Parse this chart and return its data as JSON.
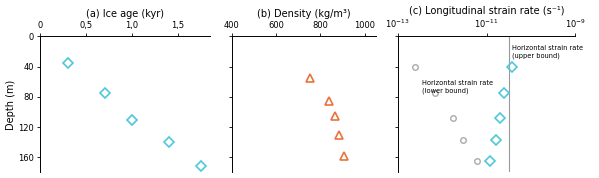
{
  "panel_a": {
    "title": "(a) Ice age (kyr)",
    "depths": [
      35,
      75,
      110,
      140,
      172
    ],
    "ages": [
      0.3,
      0.7,
      1.0,
      1.4,
      1.75
    ],
    "xlim": [
      0,
      1.85
    ],
    "xticks": [
      0,
      0.5,
      1.0,
      1.5
    ],
    "xticklabels": [
      "0",
      "0,5",
      "1,0",
      "1,5"
    ],
    "color": "#4DC8DC",
    "markersize": 5
  },
  "panel_b": {
    "title": "(b) Density (kg/m³)",
    "depths": [
      55,
      85,
      105,
      130,
      158
    ],
    "densities": [
      755,
      840,
      865,
      885,
      905
    ],
    "xlim": [
      400,
      1050
    ],
    "xticks": [
      400,
      600,
      800,
      1000
    ],
    "color": "#E8733A",
    "markersize": 6
  },
  "panel_c": {
    "title": "(c) Longitudinal strain rate (s⁻¹)",
    "depths": [
      40,
      75,
      108,
      137,
      165
    ],
    "strain_rates": [
      3.8e-11,
      2.5e-11,
      2e-11,
      1.6e-11,
      1.2e-11
    ],
    "lower_bounds": [
      2.5e-13,
      7e-13,
      1.8e-12,
      3e-12,
      6e-12
    ],
    "diamond_color": "#4DC8DC",
    "circle_color": "#aaaaaa",
    "vline_x": 3.2e-11,
    "label_upper": "Horizontal strain rate\n(upper bound)",
    "label_lower": "Horizontal strain rate\n(lower bound)"
  },
  "ylim": [
    180,
    0
  ],
  "yticks": [
    0,
    40,
    80,
    120,
    160
  ],
  "ylabel": "Depth (m)",
  "figure_bg": "#ffffff"
}
